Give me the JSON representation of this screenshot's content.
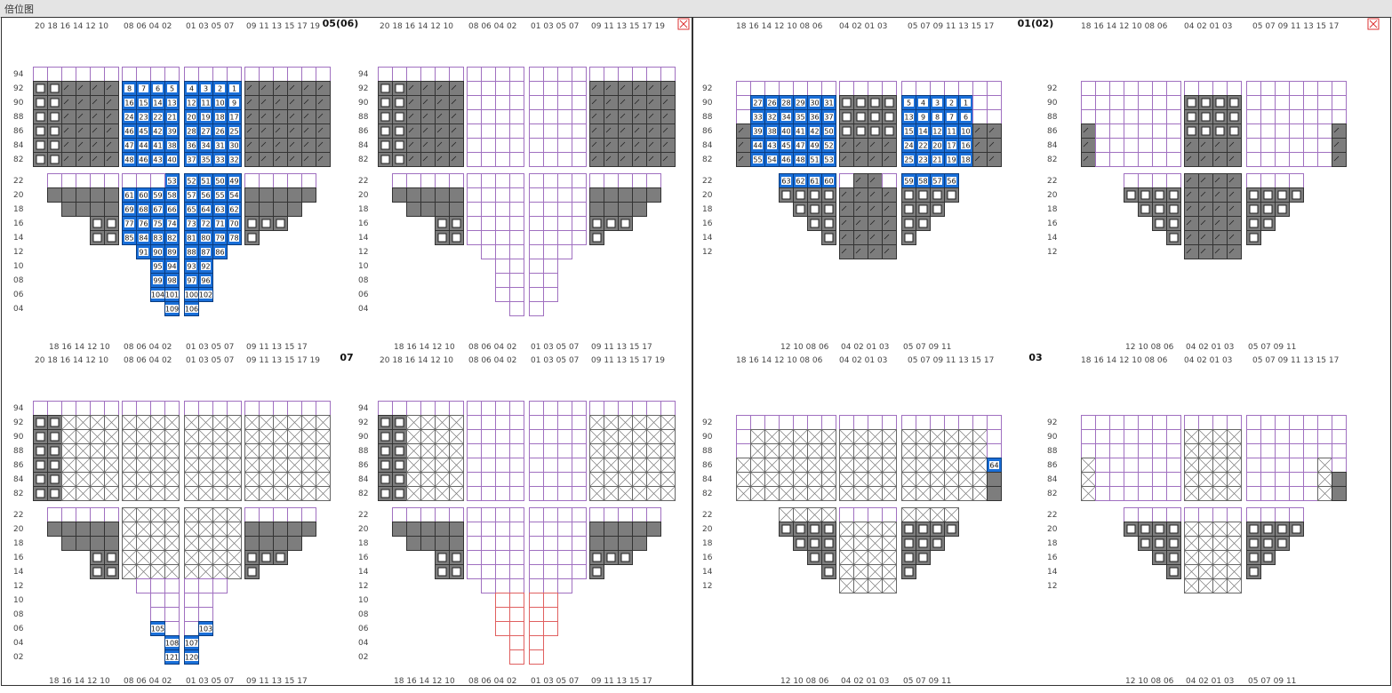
{
  "window": {
    "title": "倍位图"
  },
  "colors": {
    "grid": "#a070c0",
    "grid_red": "#e06060",
    "filled_gray": "#7d7d7d",
    "planned_blue": "#1a6fd8",
    "panel_border": "#333333"
  },
  "bay_groups": [
    {
      "label": "05(06)",
      "type": "A",
      "top_cols": [
        "20 18 16 14 12 10",
        "08 06 04 02",
        "01 03 05 07",
        "09 11 13 15 17 19"
      ],
      "bottom_cols": [
        "18 16 14 12 10",
        "08 06 04 02",
        "01 03 05 07",
        "09 11 13 15 17"
      ],
      "deck_tiers": [
        "94",
        "92",
        "90",
        "88",
        "86",
        "84",
        "82"
      ],
      "hold_tiers": [
        "22",
        "20",
        "18",
        "16",
        "14",
        "12",
        "10",
        "08",
        "06",
        "04"
      ],
      "left_planned": {
        "deck": [
          [
            "8",
            "7",
            "6",
            "5",
            "4",
            "3",
            "2",
            "1"
          ],
          [
            "16",
            "15",
            "14",
            "13",
            "12",
            "11",
            "10",
            "9"
          ],
          [
            "24",
            "23",
            "22",
            "21",
            "20",
            "19",
            "18",
            "17"
          ],
          [
            "46",
            "45",
            "42",
            "39",
            "28",
            "27",
            "26",
            "25"
          ],
          [
            "47",
            "44",
            "41",
            "38",
            "36",
            "34",
            "31",
            "30"
          ],
          [
            "48",
            "46",
            "43",
            "40",
            "37",
            "35",
            "33",
            "32"
          ]
        ],
        "hold": [
          [
            "",
            "",
            "",
            "53",
            "52",
            "51",
            "50",
            "49"
          ],
          [
            "61",
            "60",
            "59",
            "58",
            "57",
            "56",
            "55",
            "54"
          ],
          [
            "69",
            "68",
            "67",
            "66",
            "65",
            "64",
            "63",
            "62"
          ],
          [
            "77",
            "76",
            "75",
            "74",
            "73",
            "72",
            "71",
            "70"
          ],
          [
            "85",
            "84",
            "83",
            "82",
            "81",
            "80",
            "79",
            "78"
          ],
          [
            "",
            "91",
            "90",
            "89",
            "88",
            "87",
            "86",
            ""
          ],
          [
            "",
            "",
            "95",
            "94",
            "93",
            "92",
            "",
            ""
          ],
          [
            "",
            "",
            "99",
            "98",
            "97",
            "96",
            "",
            ""
          ],
          [
            "",
            "",
            "104",
            "101",
            "100",
            "102",
            "",
            ""
          ],
          [
            "",
            "",
            "",
            "109",
            "106",
            "",
            "",
            ""
          ]
        ]
      },
      "right_planned": null
    },
    {
      "label": "01(02)",
      "type": "B",
      "top_cols": [
        "18 16 14 12 10 08 06",
        "04 02 01 03",
        "05 07 09 11 13 15 17"
      ],
      "bottom_cols": [
        "12 10 08 06",
        "04 02 01 03",
        "05 07 09 11"
      ],
      "deck_tiers": [
        "92",
        "90",
        "88",
        "86",
        "84",
        "82"
      ],
      "hold_tiers": [
        "22",
        "20",
        "18",
        "16",
        "14",
        "12"
      ],
      "left_planned": {
        "deck_left": [
          [
            "27",
            "26",
            "28",
            "29",
            "30",
            "31"
          ],
          [
            "33",
            "32",
            "34",
            "35",
            "36",
            "37"
          ],
          [
            "39",
            "38",
            "40",
            "41",
            "42",
            "50"
          ],
          [
            "44",
            "43",
            "45",
            "47",
            "49",
            "52"
          ],
          [
            "55",
            "54",
            "46",
            "48",
            "51",
            "53"
          ]
        ],
        "deck_right": [
          [
            "5",
            "4",
            "3",
            "2",
            "1"
          ],
          [
            "13",
            "9",
            "8",
            "7",
            "6"
          ],
          [
            "15",
            "14",
            "12",
            "11",
            "10"
          ],
          [
            "24",
            "22",
            "20",
            "17",
            "16"
          ],
          [
            "25",
            "23",
            "21",
            "19",
            "18"
          ]
        ],
        "hold_left": [
          "63",
          "62",
          "61",
          "60"
        ],
        "hold_right": [
          "59",
          "58",
          "57",
          "56"
        ]
      },
      "right_planned": null
    },
    {
      "label": "07",
      "type": "A",
      "top_cols": [
        "20 18 16 14 12 10",
        "08 06 04 02",
        "01 03 05 07",
        "09 11 13 15 17 19"
      ],
      "bottom_cols": [
        "18 16 14 12 10",
        "08 06 04 02",
        "01 03 05 07",
        "09 11 13 15 17"
      ],
      "deck_tiers": [
        "94",
        "92",
        "90",
        "88",
        "86",
        "84",
        "82"
      ],
      "hold_tiers": [
        "22",
        "20",
        "18",
        "16",
        "14",
        "12",
        "10",
        "08",
        "06",
        "04",
        "02"
      ],
      "left_planned": {
        "hold_blue": [
          {
            "row": 5,
            "col": 0,
            "txt": "118"
          },
          {
            "row": 5,
            "col": 7,
            "txt": "116"
          },
          {
            "row": 6,
            "col": 1,
            "txt": "113"
          },
          {
            "row": 6,
            "col": 6,
            "txt": "111"
          },
          {
            "row": 7,
            "col": 1,
            "txt": "114"
          },
          {
            "row": 7,
            "col": 6,
            "txt": "110"
          },
          {
            "row": 8,
            "col": 1,
            "txt": "115"
          },
          {
            "row": 8,
            "col": 2,
            "txt": "105"
          },
          {
            "row": 8,
            "col": 5,
            "txt": "103"
          },
          {
            "row": 8,
            "col": 6,
            "txt": "112"
          },
          {
            "row": 9,
            "col": 2,
            "txt": "119"
          },
          {
            "row": 9,
            "col": 3,
            "txt": "108"
          },
          {
            "row": 9,
            "col": 4,
            "txt": "107"
          },
          {
            "row": 9,
            "col": 5,
            "txt": "117"
          },
          {
            "row": 10,
            "col": 3,
            "txt": "121"
          },
          {
            "row": 10,
            "col": 4,
            "txt": "120"
          }
        ]
      },
      "right_planned": null
    },
    {
      "label": "03",
      "type": "B",
      "top_cols": [
        "18 16 14 12 10 08 06",
        "04 02 01 03",
        "05 07 09 11 13 15 17"
      ],
      "bottom_cols": [
        "12 10 08 06",
        "04 02 01 03",
        "05 07 09 11"
      ],
      "deck_tiers": [
        "92",
        "90",
        "88",
        "86",
        "84",
        "82"
      ],
      "hold_tiers": [
        "22",
        "20",
        "18",
        "16",
        "14",
        "12"
      ],
      "left_planned": {
        "deck_blue": [
          {
            "row": 3,
            "txt": "64"
          }
        ]
      },
      "right_planned": null
    }
  ]
}
